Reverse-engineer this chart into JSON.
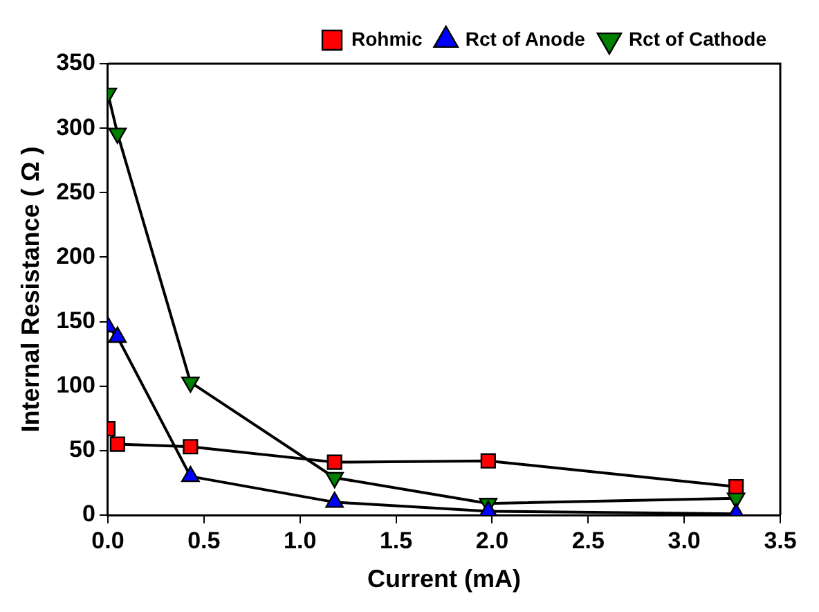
{
  "chart_data": {
    "type": "line",
    "xlabel": "Current (mA)",
    "ylabel": "Internal Resistance ( Ω )",
    "xlim": [
      0,
      3.5
    ],
    "xticks": [
      {
        "value": 0,
        "label": "0.0"
      },
      {
        "value": 0.5,
        "label": "0.5"
      },
      {
        "value": 1,
        "label": "1.0"
      },
      {
        "value": 1.5,
        "label": "1.5"
      },
      {
        "value": 2,
        "label": "2.0"
      },
      {
        "value": 2.5,
        "label": "2.5"
      },
      {
        "value": 3,
        "label": "3.0"
      },
      {
        "value": 3.5,
        "label": "3.5"
      }
    ],
    "ylim": [
      0,
      350
    ],
    "yticks": [
      0,
      50,
      100,
      150,
      200,
      250,
      300,
      350
    ],
    "grid": false,
    "legend": "top right",
    "line_style": "solid",
    "series": [
      {
        "name": "Rohmic",
        "color": "#ff0000",
        "marker": "square",
        "x": [
          0,
          0.05,
          0.43,
          1.18,
          1.98,
          3.27
        ],
        "values": [
          67,
          55,
          53,
          41,
          42,
          22
        ]
      },
      {
        "name": "Rct of Anode",
        "color": "#0000ff",
        "marker": "triangle",
        "x": [
          0,
          0.05,
          0.43,
          1.18,
          1.98,
          3.27
        ],
        "values": [
          146,
          138,
          30,
          10,
          3,
          1
        ]
      },
      {
        "name": "Rct of Cathode",
        "color": "#008000",
        "marker": "triangle-down",
        "x": [
          0,
          0.05,
          0.43,
          1.18,
          1.98,
          3.27
        ],
        "values": [
          327,
          296,
          103,
          29,
          9,
          13
        ]
      }
    ]
  }
}
